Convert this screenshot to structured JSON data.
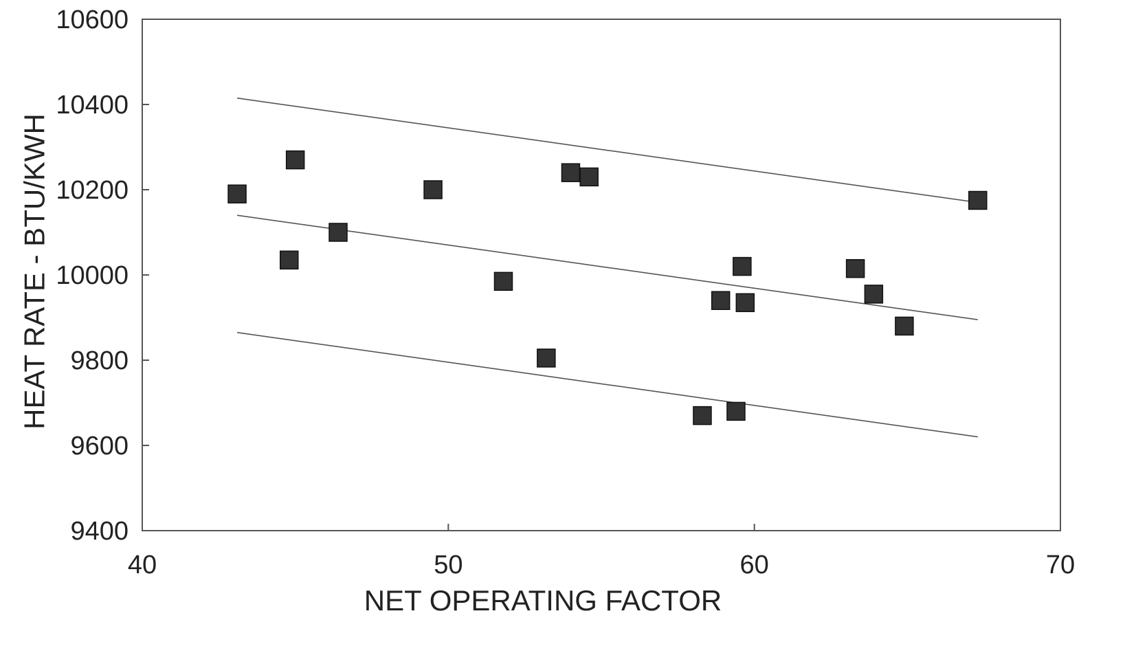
{
  "chart_data": {
    "type": "scatter",
    "title": "",
    "xlabel": "NET OPERATING FACTOR",
    "ylabel": "HEAT RATE - BTU/KWH",
    "xlim": [
      40,
      70
    ],
    "ylim": [
      9400,
      10600
    ],
    "x_ticks": [
      40,
      50,
      60,
      70
    ],
    "y_ticks": [
      9400,
      9600,
      9800,
      10000,
      10200,
      10400,
      10600
    ],
    "x_tick_labels": [
      "40",
      "50",
      "60",
      "70"
    ],
    "y_tick_labels": [
      "9400",
      "9600",
      "9800",
      "10000",
      "10200",
      "10400",
      "10600"
    ],
    "grid": false,
    "legend": "none",
    "colors": {
      "marker": "#333333",
      "line": "#555555",
      "frame": "#555555"
    },
    "points": [
      {
        "x": 43.1,
        "y": 10190
      },
      {
        "x": 44.8,
        "y": 10035
      },
      {
        "x": 45.0,
        "y": 10270
      },
      {
        "x": 46.4,
        "y": 10100
      },
      {
        "x": 49.5,
        "y": 10200
      },
      {
        "x": 51.8,
        "y": 9985
      },
      {
        "x": 53.2,
        "y": 9805
      },
      {
        "x": 54.0,
        "y": 10240
      },
      {
        "x": 54.6,
        "y": 10230
      },
      {
        "x": 58.3,
        "y": 9670
      },
      {
        "x": 58.9,
        "y": 9940
      },
      {
        "x": 59.4,
        "y": 9680
      },
      {
        "x": 59.6,
        "y": 10020
      },
      {
        "x": 59.7,
        "y": 9935
      },
      {
        "x": 63.3,
        "y": 10015
      },
      {
        "x": 63.9,
        "y": 9955
      },
      {
        "x": 64.9,
        "y": 9880
      },
      {
        "x": 67.3,
        "y": 10175
      }
    ],
    "lines": [
      {
        "x": [
          43.1,
          67.3
        ],
        "y": [
          10415,
          10170
        ]
      },
      {
        "x": [
          43.1,
          67.3
        ],
        "y": [
          10140,
          9895
        ]
      },
      {
        "x": [
          43.1,
          67.3
        ],
        "y": [
          9865,
          9620
        ]
      }
    ]
  }
}
